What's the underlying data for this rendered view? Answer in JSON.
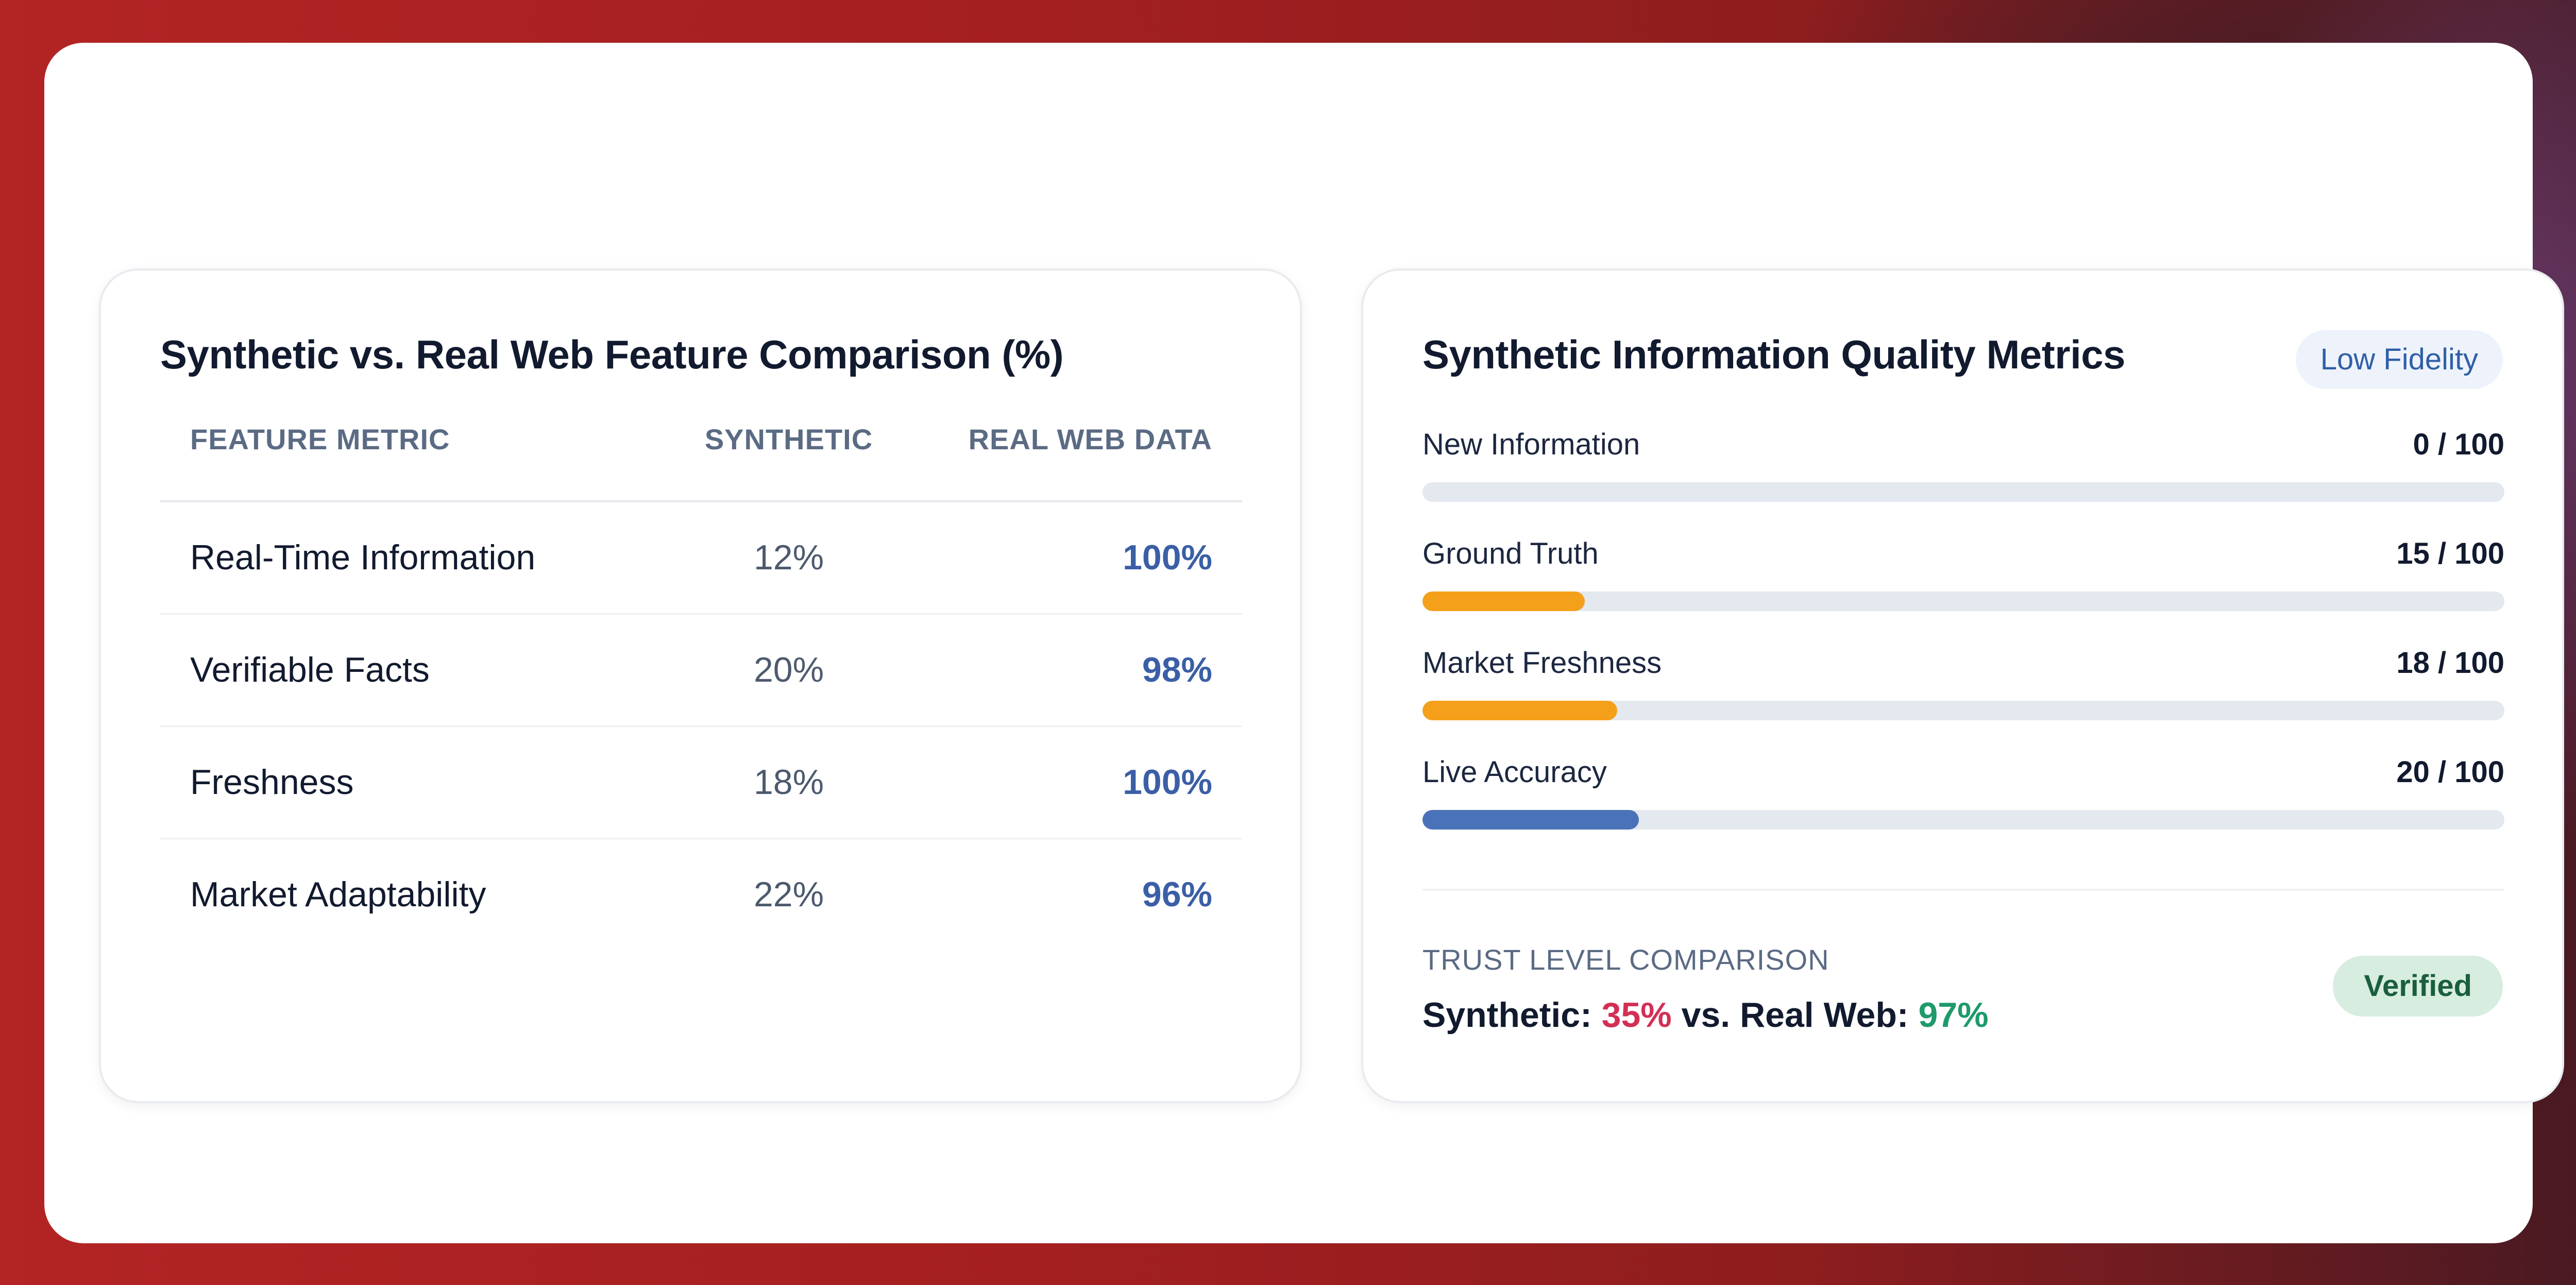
{
  "colors": {
    "page_background": "#a11d1f",
    "accent_blue": "#3b5fa6",
    "warning_orange": "#f5a01a",
    "bar_blue": "#4a72b8",
    "synthetic_red": "#d32f55",
    "real_green": "#1f9a6a",
    "verified_bg": "#d7eddf"
  },
  "comparison": {
    "title": "Synthetic vs. Real Web Feature Comparison (%)",
    "headers": [
      "FEATURE METRIC",
      "SYNTHETIC",
      "REAL WEB DATA"
    ],
    "rows": [
      {
        "metric": "Real-Time Information",
        "synthetic": "12%",
        "real": "100%"
      },
      {
        "metric": "Verifiable Facts",
        "synthetic": "20%",
        "real": "98%"
      },
      {
        "metric": "Freshness",
        "synthetic": "18%",
        "real": "100%"
      },
      {
        "metric": "Market Adaptability",
        "synthetic": "22%",
        "real": "96%"
      }
    ]
  },
  "quality": {
    "title": "Synthetic Information Quality Metrics",
    "badge": "Low Fidelity",
    "metrics": [
      {
        "label": "New Information",
        "score_text": "0 / 100",
        "value": 0,
        "max": 100,
        "color": "#f5a01a"
      },
      {
        "label": "Ground Truth",
        "score_text": "15 / 100",
        "value": 15,
        "max": 100,
        "color": "#f5a01a"
      },
      {
        "label": "Market Freshness",
        "score_text": "18 / 100",
        "value": 18,
        "max": 100,
        "color": "#f5a01a"
      },
      {
        "label": "Live Accuracy",
        "score_text": "20 / 100",
        "value": 20,
        "max": 100,
        "color": "#4a72b8"
      }
    ],
    "trust": {
      "label": "TRUST LEVEL COMPARISON",
      "synthetic_prefix": "Synthetic:",
      "synthetic_value": "35%",
      "separator": "vs. Real Web:",
      "real_value": "97%",
      "status": "Verified"
    }
  }
}
